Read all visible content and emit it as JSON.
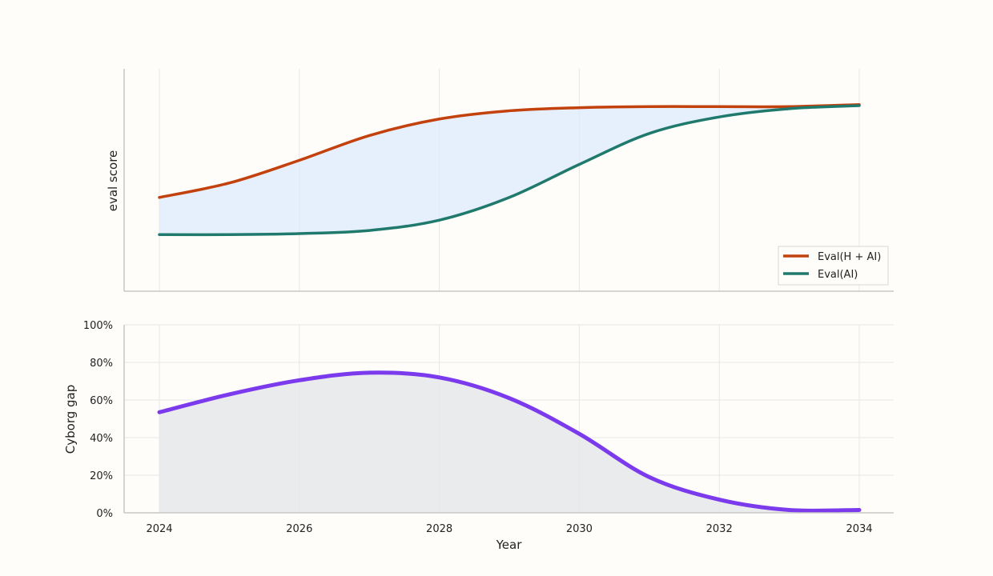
{
  "chart_data": [
    {
      "type": "line",
      "xlabel": "",
      "ylabel": "eval score",
      "xlim": [
        2024,
        2034
      ],
      "grid": true,
      "legend_position": "bottom-right",
      "legend": [
        "Eval(H + AI)",
        "Eval(AI)"
      ],
      "x": [
        2024,
        2025,
        2026,
        2027,
        2028,
        2029,
        2030,
        2031,
        2032,
        2033,
        2034
      ],
      "series": [
        {
          "name": "Eval(H + AI)",
          "color": "#c2410c",
          "values": [
            0.4,
            0.47,
            0.58,
            0.7,
            0.78,
            0.82,
            0.835,
            0.84,
            0.84,
            0.84,
            0.85
          ]
        },
        {
          "name": "Eval(AI)",
          "color": "#1f7a6d",
          "values": [
            0.22,
            0.22,
            0.225,
            0.24,
            0.29,
            0.4,
            0.56,
            0.71,
            0.79,
            0.83,
            0.845
          ]
        }
      ],
      "fill_between": {
        "color": "#dbeafe",
        "series": [
          "Eval(H + AI)",
          "Eval(AI)"
        ]
      }
    },
    {
      "type": "area",
      "xlabel": "Year",
      "ylabel": "Cyborg gap",
      "xlim": [
        2024,
        2034
      ],
      "ylim": [
        0,
        100
      ],
      "grid": true,
      "x_ticks": [
        2024,
        2026,
        2028,
        2030,
        2032,
        2034
      ],
      "y_ticks": [
        "0%",
        "20%",
        "40%",
        "60%",
        "80%",
        "100%"
      ],
      "x": [
        2024,
        2025,
        2026,
        2027,
        2028,
        2029,
        2030,
        2031,
        2032,
        2033,
        2034
      ],
      "series": [
        {
          "name": "",
          "color": "#7c3aed",
          "values": [
            53.5,
            63,
            70.5,
            74.5,
            72,
            61,
            42,
            19,
            7,
            1.5,
            1.5
          ]
        }
      ],
      "area_color": "#e5e7eb"
    }
  ]
}
